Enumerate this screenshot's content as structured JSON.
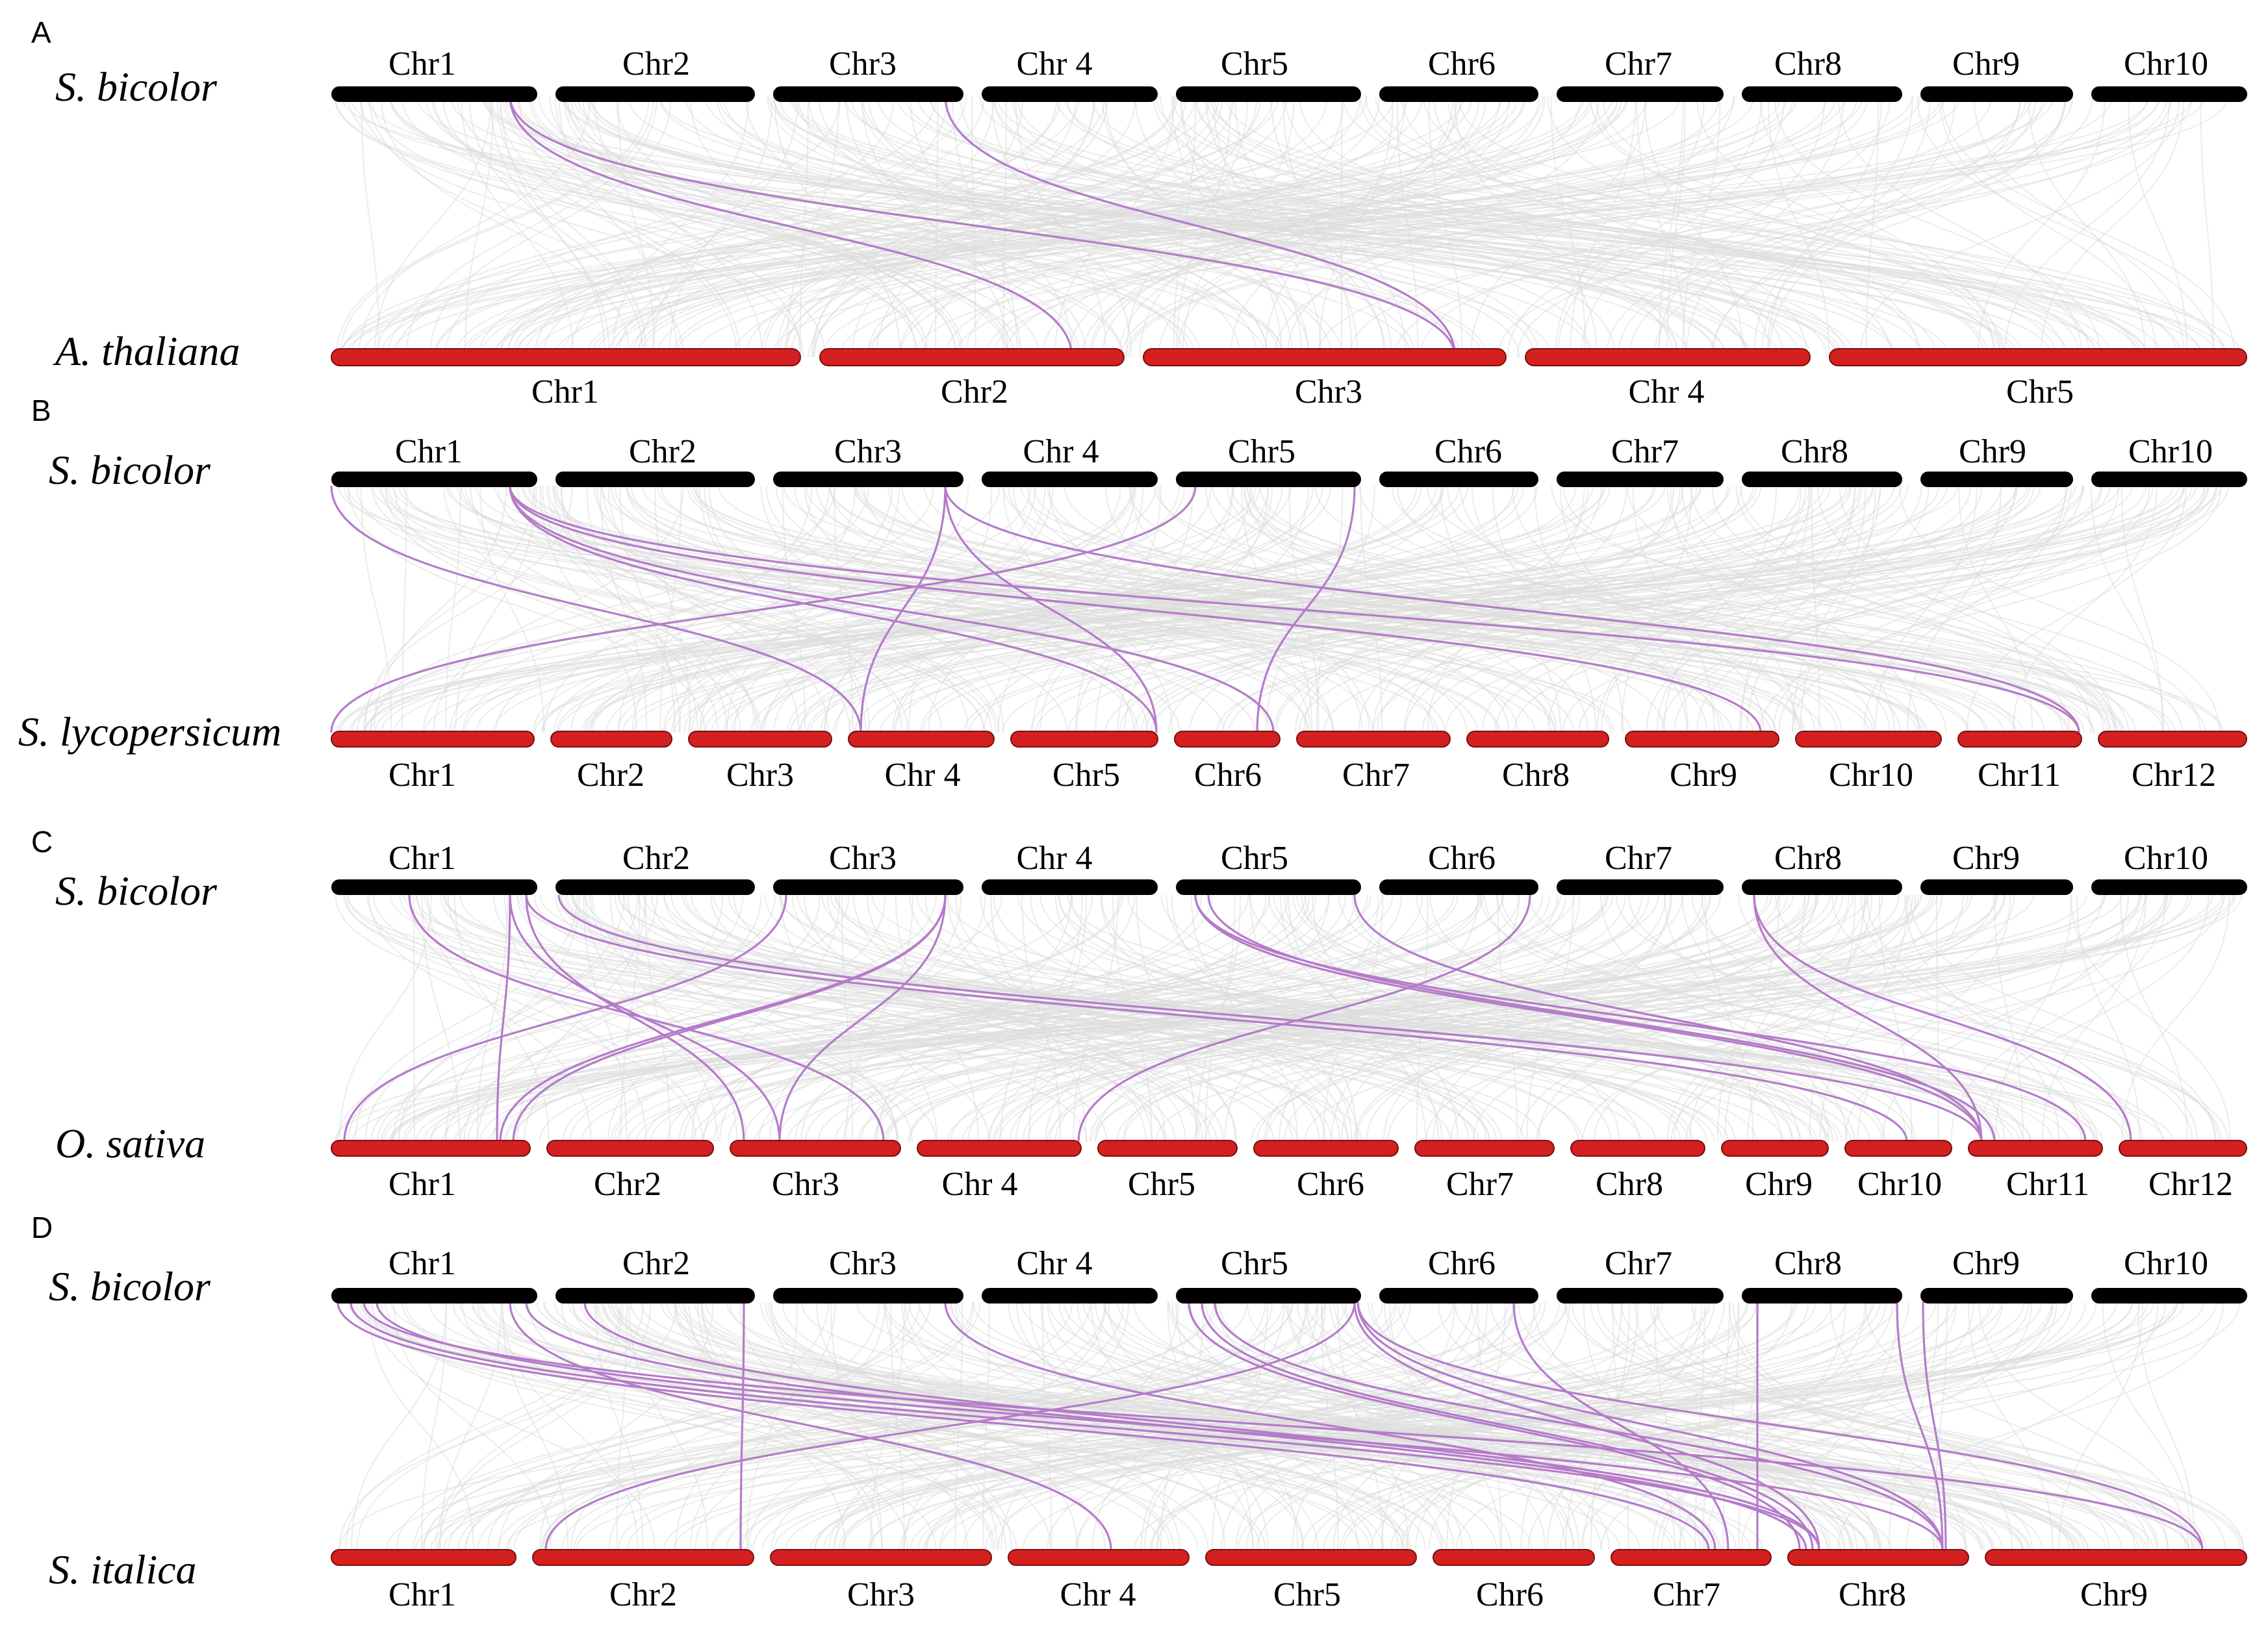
{
  "colors": {
    "reference_bar": "#000000",
    "target_bar": "#d42020",
    "background_link": "#dcdcdc",
    "highlight_link": "#b57bc9"
  },
  "panels": [
    {
      "letter": "A",
      "ref_species": "S. bicolor",
      "target_species": "A. thaliana",
      "ref_chromosomes": [
        "Chr1",
        "Chr2",
        "Chr3",
        "Chr 4",
        "Chr5",
        "Chr6",
        "Chr7",
        "Chr8",
        "Chr9",
        "Chr10"
      ],
      "target_chromosomes": [
        "Chr1",
        "Chr2",
        "Chr3",
        "Chr 4",
        "Chr5"
      ]
    },
    {
      "letter": "B",
      "ref_species": "S. bicolor",
      "target_species": "S. lycopersicum",
      "ref_chromosomes": [
        "Chr1",
        "Chr2",
        "Chr3",
        "Chr 4",
        "Chr5",
        "Chr6",
        "Chr7",
        "Chr8",
        "Chr9",
        "Chr10"
      ],
      "target_chromosomes": [
        "Chr1",
        "Chr2",
        "Chr3",
        "Chr 4",
        "Chr5",
        "Chr6",
        "Chr7",
        "Chr8",
        "Chr9",
        "Chr10",
        "Chr11",
        "Chr12"
      ]
    },
    {
      "letter": "C",
      "ref_species": "S. bicolor",
      "target_species": "O. sativa",
      "ref_chromosomes": [
        "Chr1",
        "Chr2",
        "Chr3",
        "Chr 4",
        "Chr5",
        "Chr6",
        "Chr7",
        "Chr8",
        "Chr9",
        "Chr10"
      ],
      "target_chromosomes": [
        "Chr1",
        "Chr2",
        "Chr3",
        "Chr 4",
        "Chr5",
        "Chr6",
        "Chr7",
        "Chr8",
        "Chr9",
        "Chr10",
        "Chr11",
        "Chr12"
      ]
    },
    {
      "letter": "D",
      "ref_species": "S. bicolor",
      "target_species": "S. italica",
      "ref_chromosomes": [
        "Chr1",
        "Chr2",
        "Chr3",
        "Chr 4",
        "Chr5",
        "Chr6",
        "Chr7",
        "Chr8",
        "Chr9",
        "Chr10"
      ],
      "target_chromosomes": [
        "Chr1",
        "Chr2",
        "Chr3",
        "Chr 4",
        "Chr5",
        "Chr6",
        "Chr7",
        "Chr8",
        "Chr9"
      ]
    }
  ]
}
